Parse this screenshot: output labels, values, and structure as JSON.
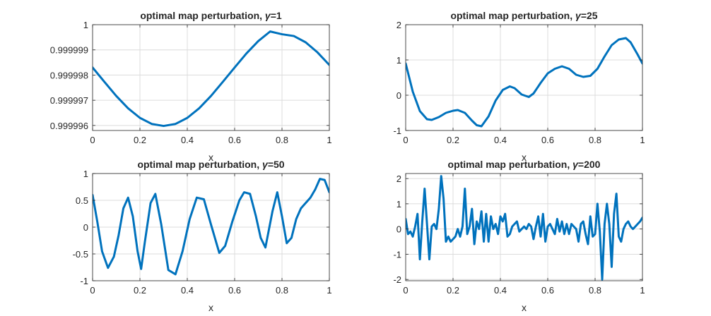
{
  "figure": {
    "background": "#ffffff",
    "line_color": "#0072BD",
    "grid_color": "#dcdcdc",
    "axis_color": "#262626"
  },
  "chart_data": [
    {
      "type": "line",
      "title_prefix": "optimal map perturbation, ",
      "title_symbol": "γ",
      "title_suffix": "=1",
      "xlabel": "x",
      "ylabel": "",
      "xlim": [
        0,
        1
      ],
      "ylim": [
        0.9999958,
        1.0
      ],
      "grid": true,
      "xticks": [
        0,
        0.2,
        0.4,
        0.6,
        0.8,
        1
      ],
      "xtick_labels": [
        "0",
        "0.2",
        "0.4",
        "0.6",
        "0.8",
        "1"
      ],
      "yticks": [
        0.999996,
        0.999997,
        0.999998,
        0.999999,
        1.0
      ],
      "ytick_labels": [
        "0.999996",
        "0.999997",
        "0.999998",
        "0.999999",
        "1"
      ],
      "series": [
        {
          "x": [
            0,
            0.05,
            0.1,
            0.15,
            0.2,
            0.25,
            0.3,
            0.35,
            0.4,
            0.45,
            0.5,
            0.55,
            0.6,
            0.65,
            0.7,
            0.75,
            0.8,
            0.85,
            0.9,
            0.95,
            1.0
          ],
          "y": [
            0.9999983,
            0.99999773,
            0.99999717,
            0.99999668,
            0.9999963,
            0.99999606,
            0.99999598,
            0.99999606,
            0.9999963,
            0.99999668,
            0.99999717,
            0.99999773,
            0.9999983,
            0.99999886,
            0.99999935,
            0.99999973,
            0.99999962,
            0.99999955,
            0.9999993,
            0.9999989,
            0.9999984
          ]
        }
      ]
    },
    {
      "type": "line",
      "title_prefix": "optimal map perturbation, ",
      "title_symbol": "γ",
      "title_suffix": "=25",
      "xlabel": "x",
      "ylabel": "",
      "xlim": [
        0,
        1
      ],
      "ylim": [
        -1,
        2
      ],
      "grid": true,
      "xticks": [
        0,
        0.2,
        0.4,
        0.6,
        0.8,
        1
      ],
      "xtick_labels": [
        "0",
        "0.2",
        "0.4",
        "0.6",
        "0.8",
        "1"
      ],
      "yticks": [
        -1,
        0,
        1,
        2
      ],
      "ytick_labels": [
        "-1",
        "0",
        "1",
        "2"
      ],
      "series": [
        {
          "x": [
            0,
            0.03,
            0.06,
            0.09,
            0.11,
            0.14,
            0.17,
            0.2,
            0.22,
            0.25,
            0.28,
            0.3,
            0.32,
            0.35,
            0.38,
            0.41,
            0.44,
            0.46,
            0.49,
            0.52,
            0.54,
            0.57,
            0.6,
            0.63,
            0.66,
            0.69,
            0.72,
            0.75,
            0.78,
            0.81,
            0.84,
            0.87,
            0.9,
            0.93,
            0.95,
            0.98,
            1.0
          ],
          "y": [
            0.9,
            0.1,
            -0.45,
            -0.68,
            -0.7,
            -0.62,
            -0.5,
            -0.44,
            -0.42,
            -0.5,
            -0.72,
            -0.85,
            -0.88,
            -0.6,
            -0.15,
            0.15,
            0.25,
            0.2,
            0.02,
            -0.05,
            0.05,
            0.35,
            0.62,
            0.75,
            0.82,
            0.75,
            0.58,
            0.52,
            0.55,
            0.75,
            1.1,
            1.42,
            1.58,
            1.62,
            1.5,
            1.15,
            0.9
          ]
        }
      ]
    },
    {
      "type": "line",
      "title_prefix": "optimal map perturbation, ",
      "title_symbol": "γ",
      "title_suffix": "=50",
      "xlabel": "x",
      "ylabel": "",
      "xlim": [
        0,
        1
      ],
      "ylim": [
        -1,
        1
      ],
      "grid": true,
      "xticks": [
        0,
        0.2,
        0.4,
        0.6,
        0.8,
        1
      ],
      "xtick_labels": [
        "0",
        "0.2",
        "0.4",
        "0.6",
        "0.8",
        "1"
      ],
      "yticks": [
        -1,
        -0.5,
        0,
        0.5,
        1
      ],
      "ytick_labels": [
        "-1",
        "-0.5",
        "0",
        "0.5",
        "1"
      ],
      "series": [
        {
          "x": [
            0,
            0.02,
            0.04,
            0.065,
            0.09,
            0.11,
            0.13,
            0.15,
            0.17,
            0.19,
            0.205,
            0.22,
            0.245,
            0.265,
            0.29,
            0.32,
            0.35,
            0.38,
            0.41,
            0.44,
            0.47,
            0.5,
            0.535,
            0.56,
            0.59,
            0.62,
            0.64,
            0.665,
            0.69,
            0.71,
            0.73,
            0.76,
            0.78,
            0.8,
            0.82,
            0.84,
            0.86,
            0.88,
            0.9,
            0.92,
            0.94,
            0.96,
            0.98,
            1.0
          ],
          "y": [
            0.6,
            0.1,
            -0.45,
            -0.76,
            -0.55,
            -0.15,
            0.35,
            0.55,
            0.2,
            -0.45,
            -0.78,
            -0.3,
            0.45,
            0.62,
            0.05,
            -0.8,
            -0.88,
            -0.45,
            0.15,
            0.55,
            0.52,
            0.05,
            -0.48,
            -0.35,
            0.1,
            0.5,
            0.65,
            0.62,
            0.2,
            -0.2,
            -0.38,
            0.3,
            0.65,
            0.2,
            -0.3,
            -0.2,
            0.15,
            0.35,
            0.45,
            0.55,
            0.7,
            0.9,
            0.88,
            0.65
          ]
        }
      ]
    },
    {
      "type": "line",
      "title_prefix": "optimal map perturbation, ",
      "title_symbol": "γ",
      "title_suffix": "=200",
      "xlabel": "x",
      "ylabel": "",
      "xlim": [
        0,
        1
      ],
      "ylim": [
        -2.05,
        2.2
      ],
      "grid": true,
      "xticks": [
        0,
        0.2,
        0.4,
        0.6,
        0.8,
        1
      ],
      "xtick_labels": [
        "0",
        "0.2",
        "0.4",
        "0.6",
        "0.8",
        "1"
      ],
      "yticks": [
        -2,
        -1,
        0,
        1,
        2
      ],
      "ytick_labels": [
        "-2",
        "-1",
        "0",
        "1",
        "2"
      ],
      "series": [
        {
          "x": [
            0,
            0.01,
            0.02,
            0.03,
            0.04,
            0.05,
            0.06,
            0.07,
            0.08,
            0.09,
            0.1,
            0.11,
            0.12,
            0.13,
            0.14,
            0.15,
            0.16,
            0.17,
            0.18,
            0.19,
            0.2,
            0.21,
            0.22,
            0.23,
            0.24,
            0.25,
            0.26,
            0.27,
            0.28,
            0.29,
            0.3,
            0.31,
            0.32,
            0.33,
            0.34,
            0.35,
            0.36,
            0.37,
            0.38,
            0.39,
            0.4,
            0.41,
            0.42,
            0.43,
            0.44,
            0.45,
            0.46,
            0.47,
            0.48,
            0.49,
            0.5,
            0.51,
            0.52,
            0.53,
            0.54,
            0.55,
            0.56,
            0.57,
            0.58,
            0.59,
            0.6,
            0.61,
            0.62,
            0.63,
            0.64,
            0.65,
            0.66,
            0.67,
            0.68,
            0.69,
            0.7,
            0.71,
            0.72,
            0.73,
            0.74,
            0.75,
            0.76,
            0.77,
            0.78,
            0.79,
            0.8,
            0.81,
            0.82,
            0.83,
            0.84,
            0.85,
            0.86,
            0.87,
            0.88,
            0.89,
            0.9,
            0.91,
            0.92,
            0.93,
            0.94,
            0.95,
            0.96,
            0.97,
            0.98,
            0.99,
            1.0
          ],
          "y": [
            0.4,
            -0.2,
            -0.1,
            -0.3,
            0.1,
            0.6,
            -1.2,
            0.3,
            1.6,
            0.2,
            -1.2,
            0.1,
            0.2,
            0.0,
            0.8,
            2.1,
            1.2,
            -0.5,
            -0.3,
            -0.5,
            -0.4,
            -0.3,
            0.0,
            -0.3,
            0.1,
            1.6,
            -0.2,
            0.1,
            0.8,
            -0.6,
            0.3,
            0.0,
            0.7,
            -0.5,
            0.6,
            -0.5,
            0.5,
            0.0,
            0.2,
            -0.2,
            0.5,
            0.3,
            0.6,
            -0.3,
            -0.2,
            0.1,
            0.2,
            0.3,
            -0.1,
            0.0,
            0.1,
            0.0,
            0.2,
            0.1,
            -0.4,
            0.1,
            0.5,
            -0.3,
            0.6,
            -0.5,
            0.1,
            0.2,
            0.0,
            -0.2,
            0.4,
            -0.1,
            0.3,
            -0.2,
            0.2,
            -0.2,
            0.2,
            0.1,
            0.0,
            -0.5,
            0.2,
            0.3,
            -0.2,
            -0.6,
            0.5,
            -0.3,
            -0.2,
            1.0,
            -0.1,
            -2.0,
            0.2,
            1.0,
            0.2,
            -1.5,
            0.6,
            1.4,
            -0.3,
            -0.5,
            0.0,
            0.2,
            0.3,
            0.1,
            0.0,
            0.1,
            0.2,
            0.3,
            0.45
          ]
        }
      ]
    }
  ]
}
